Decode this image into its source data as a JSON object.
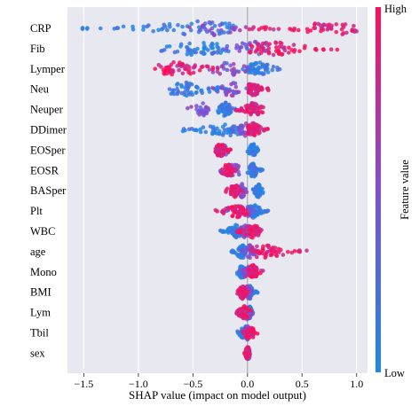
{
  "chart_data": {
    "type": "scatter",
    "subtype": "shap-beeswarm-summary",
    "xlabel": "SHAP value (impact on model output)",
    "xlim": [
      -1.65,
      1.1
    ],
    "xticks": [
      -1.5,
      -1.0,
      -0.5,
      0.0,
      0.5,
      1.0
    ],
    "xtick_labels": [
      "−1.5",
      "−1.0",
      "−0.5",
      "0.0",
      "0.5",
      "1.0"
    ],
    "grid": true,
    "colorbar": {
      "label": "Feature value",
      "high_label": "High",
      "low_label": "Low",
      "low_color": "#1e88e5",
      "high_color": "#ff0d57"
    },
    "background_color": "#e8e8f0",
    "features": [
      {
        "name": "CRP",
        "pos": {
          "min": 0.0,
          "max": 1.0,
          "center": 0.82
        },
        "neg": {
          "min": -1.55,
          "max": -0.05,
          "center": -0.45
        },
        "mid": {
          "min": -0.6,
          "max": 0.0
        }
      },
      {
        "name": "Fib",
        "pos": {
          "min": 0.0,
          "max": 0.85,
          "center": 0.25
        },
        "neg": {
          "min": -0.8,
          "max": 0.05,
          "center": -0.45
        },
        "mid": {
          "min": -0.3,
          "max": 0.4
        }
      },
      {
        "name": "Lymper",
        "pos": {
          "min": -0.95,
          "max": -0.2,
          "center": -0.65
        },
        "neg": {
          "min": -0.05,
          "max": 0.3,
          "center": 0.1
        },
        "mid": {
          "min": -0.4,
          "max": 0.05
        }
      },
      {
        "name": "Neu",
        "pos": {
          "min": 0.0,
          "max": 0.2,
          "center": 0.05
        },
        "neg": {
          "min": -0.8,
          "max": -0.15,
          "center": -0.55
        },
        "mid": {
          "min": -0.35,
          "max": 0.05
        }
      },
      {
        "name": "Neuper",
        "pos": {
          "min": -0.1,
          "max": 0.15,
          "center": 0.05
        },
        "neg": {
          "min": -0.3,
          "max": -0.1,
          "center": -0.2
        },
        "mid": {
          "min": -0.55,
          "max": -0.3
        }
      },
      {
        "name": "DDimer",
        "pos": {
          "min": 0.0,
          "max": 0.2,
          "center": 0.05
        },
        "neg": {
          "min": -0.6,
          "max": -0.05,
          "center": -0.2
        },
        "mid": {
          "min": -0.15,
          "max": 0.1
        }
      },
      {
        "name": "EOSper",
        "pos": {
          "min": -0.3,
          "max": -0.15,
          "center": -0.25
        },
        "neg": {
          "min": 0.0,
          "max": 0.1,
          "center": 0.05
        },
        "mid": {
          "min": -0.3,
          "max": -0.15
        }
      },
      {
        "name": "EOSR",
        "pos": {
          "min": -0.25,
          "max": -0.1,
          "center": -0.18
        },
        "neg": {
          "min": 0.0,
          "max": 0.15,
          "center": 0.05
        },
        "mid": {
          "min": -0.25,
          "max": 0.0
        }
      },
      {
        "name": "BASper",
        "pos": {
          "min": -0.2,
          "max": -0.05,
          "center": -0.12
        },
        "neg": {
          "min": 0.05,
          "max": 0.15,
          "center": 0.1
        },
        "mid": {
          "min": -0.1,
          "max": 0.0
        }
      },
      {
        "name": "Plt",
        "pos": {
          "min": -0.3,
          "max": 0.0,
          "center": -0.1
        },
        "neg": {
          "min": 0.0,
          "max": 0.2,
          "center": 0.05
        },
        "mid": {
          "min": -0.2,
          "max": 0.1
        }
      },
      {
        "name": "WBC",
        "pos": {
          "min": -0.1,
          "max": 0.15,
          "center": 0.05
        },
        "neg": {
          "min": -0.25,
          "max": -0.05,
          "center": -0.1
        },
        "mid": {
          "min": -0.1,
          "max": 0.05
        }
      },
      {
        "name": "age",
        "pos": {
          "min": 0.0,
          "max": 0.55,
          "center": 0.15
        },
        "neg": {
          "min": -0.15,
          "max": 0.0,
          "center": -0.05
        },
        "mid": {
          "min": -0.05,
          "max": 0.1
        }
      },
      {
        "name": "Mono",
        "pos": {
          "min": 0.0,
          "max": 0.15,
          "center": 0.05
        },
        "neg": {
          "min": -0.1,
          "max": 0.0,
          "center": -0.05
        },
        "mid": {
          "min": -0.05,
          "max": 0.05
        }
      },
      {
        "name": "BMI",
        "pos": {
          "min": -0.1,
          "max": 0.0,
          "center": -0.05
        },
        "neg": {
          "min": 0.0,
          "max": 0.1,
          "center": 0.02
        },
        "mid": {
          "min": -0.05,
          "max": 0.05
        }
      },
      {
        "name": "Lym",
        "pos": {
          "min": -0.1,
          "max": 0.05,
          "center": -0.03
        },
        "neg": {
          "min": 0.0,
          "max": 0.05,
          "center": 0.02
        },
        "mid": {
          "min": -0.05,
          "max": 0.05
        }
      },
      {
        "name": "Tbil",
        "pos": {
          "min": -0.05,
          "max": 0.1,
          "center": 0.02
        },
        "neg": {
          "min": -0.1,
          "max": 0.05,
          "center": -0.02
        },
        "mid": {
          "min": -0.05,
          "max": 0.05
        }
      },
      {
        "name": "sex",
        "pos": {
          "min": -0.03,
          "max": 0.03,
          "center": 0.0
        },
        "neg": {
          "min": -0.01,
          "max": 0.02,
          "center": 0.01
        },
        "mid": {
          "min": -0.01,
          "max": 0.01
        }
      }
    ]
  }
}
